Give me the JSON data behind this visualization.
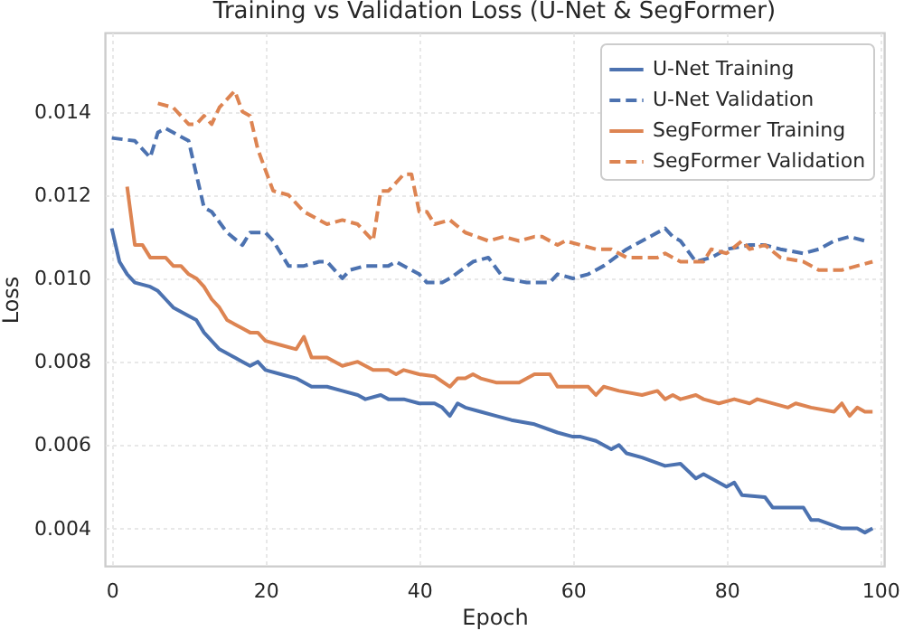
{
  "chart_data": {
    "type": "line",
    "title": "Training vs Validation Loss (U-Net & SegFormer)",
    "xlabel": "Epoch",
    "ylabel": "Loss",
    "xlim": [
      -0.9,
      100.5
    ],
    "ylim": [
      0.0031,
      0.0159
    ],
    "xticks": [
      0,
      20,
      40,
      60,
      80,
      100
    ],
    "yticks": [
      {
        "value": 0.004,
        "label": "0.004"
      },
      {
        "value": 0.006,
        "label": "0.006"
      },
      {
        "value": 0.008,
        "label": "0.008"
      },
      {
        "value": 0.01,
        "label": "0.010"
      },
      {
        "value": 0.012,
        "label": "0.012"
      },
      {
        "value": 0.014,
        "label": "0.014"
      }
    ],
    "grid": true,
    "legend": "top right",
    "marker": "none",
    "series": [
      {
        "name": "U-Net Training",
        "color": "#4c72b0",
        "line_style": "solid",
        "x": [
          0,
          1,
          2,
          3,
          5,
          6,
          7,
          8,
          10,
          11,
          12,
          14,
          16,
          17,
          18,
          19,
          20,
          22,
          24,
          26,
          28,
          30,
          32,
          33,
          35,
          36,
          38,
          40,
          42,
          43,
          44,
          45,
          46,
          48,
          50,
          52,
          55,
          58,
          60,
          61,
          63,
          65,
          66,
          67,
          69,
          72,
          74,
          76,
          77,
          80,
          81,
          82,
          85,
          86,
          88,
          90,
          91,
          92,
          95,
          97,
          98,
          99
        ],
        "values": [
          0.0112,
          0.0104,
          0.0101,
          0.0099,
          0.0098,
          0.0097,
          0.0095,
          0.0093,
          0.0091,
          0.009,
          0.0087,
          0.0083,
          0.0081,
          0.008,
          0.0079,
          0.008,
          0.0078,
          0.0077,
          0.0076,
          0.0074,
          0.0074,
          0.0073,
          0.0072,
          0.0071,
          0.0072,
          0.0071,
          0.0071,
          0.007,
          0.007,
          0.0069,
          0.0067,
          0.007,
          0.0069,
          0.0068,
          0.0067,
          0.0066,
          0.0065,
          0.0063,
          0.0062,
          0.0062,
          0.0061,
          0.0059,
          0.006,
          0.0058,
          0.0057,
          0.0055,
          0.00555,
          0.0052,
          0.0053,
          0.005,
          0.0051,
          0.0048,
          0.00475,
          0.0045,
          0.0045,
          0.0045,
          0.0042,
          0.0042,
          0.004,
          0.004,
          0.0039,
          0.004
        ]
      },
      {
        "name": "U-Net Validation",
        "color": "#4c72b0",
        "line_style": "dashed",
        "x": [
          0,
          3,
          5,
          6,
          7,
          9,
          10,
          11,
          12,
          13,
          15,
          17,
          18,
          20,
          21,
          23,
          25,
          27,
          28,
          30,
          31,
          33,
          36,
          37,
          40,
          41,
          43,
          44,
          47,
          49,
          51,
          54,
          57,
          58,
          60,
          62,
          64,
          67,
          69,
          72,
          73,
          74,
          76,
          78,
          80,
          83,
          85,
          87,
          90,
          92,
          94,
          96,
          98
        ],
        "values": [
          0.01337,
          0.0133,
          0.0129,
          0.0135,
          0.0136,
          0.0134,
          0.0133,
          0.0125,
          0.0117,
          0.0116,
          0.0111,
          0.0108,
          0.0111,
          0.0111,
          0.0109,
          0.0103,
          0.0103,
          0.0104,
          0.0104,
          0.01,
          0.0102,
          0.0103,
          0.0103,
          0.0104,
          0.0101,
          0.0099,
          0.0099,
          0.01,
          0.0104,
          0.0105,
          0.01,
          0.0099,
          0.0099,
          0.0101,
          0.01,
          0.0101,
          0.0103,
          0.0107,
          0.0109,
          0.0112,
          0.011,
          0.0109,
          0.0104,
          0.0105,
          0.0107,
          0.0108,
          0.0108,
          0.0107,
          0.0106,
          0.0107,
          0.0109,
          0.011,
          0.0109
        ]
      },
      {
        "name": "SegFormer Training",
        "color": "#dd8452",
        "line_style": "solid",
        "x": [
          2,
          3,
          4,
          5,
          6,
          7,
          8,
          9,
          10,
          11,
          12,
          13,
          14,
          15,
          16,
          17,
          18,
          19,
          20,
          22,
          24,
          25,
          26,
          28,
          30,
          32,
          34,
          36,
          37,
          38,
          40,
          42,
          44,
          45,
          46,
          47,
          48,
          50,
          53,
          55,
          57,
          58,
          60,
          62,
          63,
          64,
          66,
          69,
          71,
          72,
          73,
          74,
          76,
          77,
          79,
          81,
          83,
          84,
          88,
          89,
          91,
          94,
          95,
          96,
          97,
          98,
          99
        ],
        "values": [
          0.0122,
          0.0108,
          0.0108,
          0.0105,
          0.0105,
          0.0105,
          0.0103,
          0.0103,
          0.0101,
          0.01,
          0.0098,
          0.0095,
          0.0093,
          0.009,
          0.0089,
          0.0088,
          0.0087,
          0.0087,
          0.0085,
          0.0084,
          0.0083,
          0.0086,
          0.0081,
          0.0081,
          0.0079,
          0.008,
          0.0078,
          0.0078,
          0.0077,
          0.0078,
          0.0077,
          0.00765,
          0.0074,
          0.0076,
          0.0076,
          0.0077,
          0.0076,
          0.0075,
          0.0075,
          0.0077,
          0.0077,
          0.0074,
          0.0074,
          0.0074,
          0.0072,
          0.0074,
          0.0073,
          0.0072,
          0.0073,
          0.0071,
          0.0072,
          0.0071,
          0.0072,
          0.0071,
          0.007,
          0.0071,
          0.007,
          0.0071,
          0.0069,
          0.007,
          0.0069,
          0.0068,
          0.007,
          0.0067,
          0.0069,
          0.0068,
          0.0068
        ]
      },
      {
        "name": "SegFormer Validation",
        "color": "#dd8452",
        "line_style": "dashed",
        "x": [
          6,
          8,
          10,
          11,
          12,
          13,
          14,
          16,
          17,
          18,
          19,
          21,
          23,
          25,
          28,
          30,
          32,
          34,
          35,
          36,
          38,
          39,
          40,
          41,
          42,
          44,
          46,
          49,
          51,
          53,
          55,
          56,
          58,
          59,
          61,
          63,
          65,
          67,
          69,
          71,
          72,
          74,
          77,
          78,
          80,
          82,
          83,
          85,
          87,
          90,
          92,
          95,
          97,
          99
        ],
        "values": [
          0.0142,
          0.0141,
          0.0137,
          0.0137,
          0.0139,
          0.0137,
          0.0141,
          0.0145,
          0.014,
          0.0139,
          0.0131,
          0.0121,
          0.012,
          0.0116,
          0.0113,
          0.0114,
          0.0113,
          0.0109,
          0.0121,
          0.0121,
          0.0125,
          0.0125,
          0.0116,
          0.0116,
          0.0113,
          0.0114,
          0.0111,
          0.0109,
          0.011,
          0.0109,
          0.011,
          0.011,
          0.0108,
          0.0109,
          0.0108,
          0.0107,
          0.0107,
          0.0105,
          0.0105,
          0.0105,
          0.0106,
          0.0104,
          0.0104,
          0.0107,
          0.0106,
          0.0109,
          0.0107,
          0.0108,
          0.0105,
          0.0104,
          0.0102,
          0.0102,
          0.0103,
          0.0104
        ]
      }
    ]
  }
}
